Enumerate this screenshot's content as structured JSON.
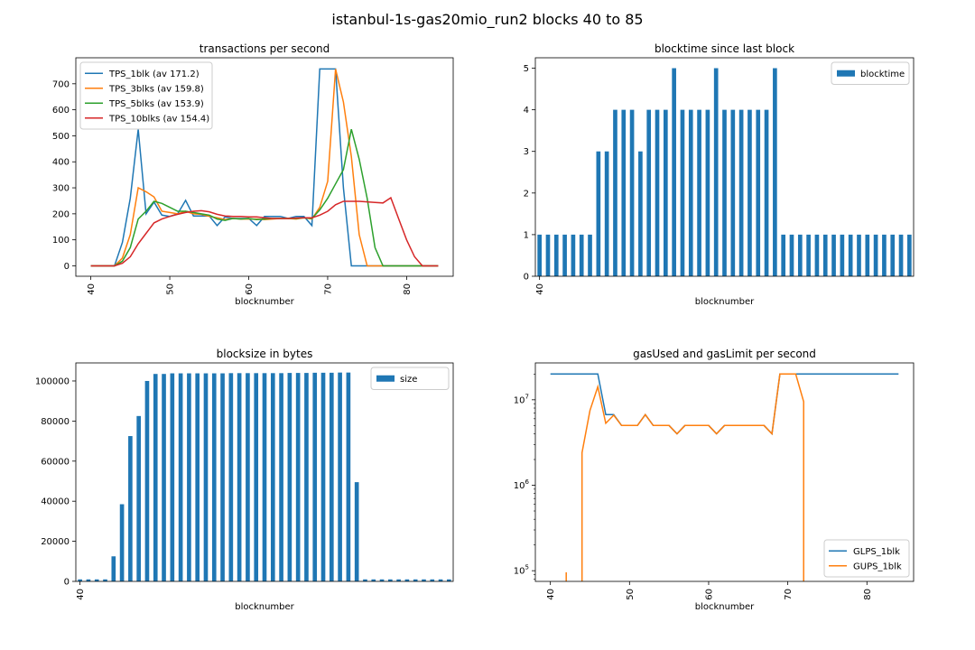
{
  "suptitle": "istanbul-1s-gas20mio_run2 blocks 40 to 85",
  "colors": {
    "blue": "#1f77b4",
    "orange": "#ff7f0e",
    "green": "#2ca02c",
    "red": "#d62728"
  },
  "chart_data": [
    {
      "type": "line",
      "title": "transactions per second",
      "xlabel": "blocknumber",
      "ylabel": "",
      "xlim": [
        38.1,
        85.9
      ],
      "ylim": [
        -40,
        800
      ],
      "xticks": [
        40,
        50,
        60,
        70,
        80
      ],
      "yticks": [
        0,
        100,
        200,
        300,
        400,
        500,
        600,
        700
      ],
      "legend": "top-left",
      "x": [
        40,
        41,
        42,
        43,
        44,
        45,
        46,
        47,
        48,
        49,
        50,
        51,
        52,
        53,
        54,
        55,
        56,
        57,
        58,
        59,
        60,
        61,
        62,
        63,
        64,
        65,
        66,
        67,
        68,
        69,
        70,
        71,
        72,
        73,
        74,
        75,
        76,
        77,
        78,
        79,
        80,
        81,
        82,
        83,
        84
      ],
      "series": [
        {
          "name": "TPS_1blk (av 171.2)",
          "color": "blue",
          "values": [
            0,
            0,
            0,
            0,
            90,
            260,
            525,
            200,
            245,
            195,
            190,
            200,
            252,
            192,
            192,
            192,
            155,
            188,
            182,
            182,
            182,
            155,
            190,
            190,
            190,
            182,
            190,
            190,
            155,
            757,
            757,
            757,
            300,
            0,
            0,
            0,
            0,
            0,
            0,
            0,
            0,
            0,
            0,
            0,
            0
          ]
        },
        {
          "name": "TPS_3blks (av 159.8)",
          "color": "orange",
          "values": [
            0,
            0,
            0,
            0,
            30,
            120,
            300,
            285,
            265,
            210,
            205,
            200,
            210,
            200,
            198,
            190,
            185,
            178,
            182,
            180,
            180,
            180,
            178,
            180,
            182,
            182,
            180,
            185,
            180,
            225,
            325,
            757,
            630,
            420,
            120,
            0,
            0,
            0,
            0,
            0,
            0,
            0,
            0,
            0,
            0
          ]
        },
        {
          "name": "TPS_5blks (av 153.9)",
          "color": "green",
          "values": [
            0,
            0,
            0,
            0,
            18,
            70,
            180,
            210,
            248,
            240,
            225,
            210,
            210,
            205,
            200,
            195,
            180,
            175,
            182,
            180,
            182,
            178,
            180,
            182,
            182,
            182,
            182,
            185,
            182,
            215,
            260,
            315,
            370,
            525,
            410,
            260,
            70,
            0,
            0,
            0,
            0,
            0,
            0,
            0,
            0
          ]
        },
        {
          "name": "TPS_10blks (av 154.4)",
          "color": "red",
          "values": [
            0,
            0,
            0,
            0,
            10,
            35,
            85,
            125,
            165,
            180,
            190,
            198,
            205,
            210,
            212,
            208,
            198,
            192,
            190,
            190,
            188,
            188,
            185,
            182,
            182,
            182,
            184,
            185,
            185,
            195,
            210,
            235,
            248,
            248,
            248,
            246,
            244,
            242,
            262,
            180,
            100,
            35,
            0,
            0,
            0
          ]
        }
      ]
    },
    {
      "type": "bar",
      "title": "blocktime since last block",
      "xlabel": "blocknumber",
      "ylabel": "",
      "ylim": [
        0,
        5.25
      ],
      "yticks": [
        0,
        1,
        2,
        3,
        4,
        5
      ],
      "xtick_labels": [
        "40"
      ],
      "legend": "top-right",
      "series": [
        {
          "name": "blocktime",
          "color": "blue",
          "values": [
            1,
            1,
            1,
            1,
            1,
            1,
            1,
            3,
            3,
            4,
            4,
            4,
            3,
            4,
            4,
            4,
            5,
            4,
            4,
            4,
            4,
            5,
            4,
            4,
            4,
            4,
            4,
            4,
            5,
            1,
            1,
            1,
            1,
            1,
            1,
            1,
            1,
            1,
            1,
            1,
            1,
            1,
            1,
            1,
            1
          ]
        }
      ]
    },
    {
      "type": "bar",
      "title": "blocksize in bytes",
      "xlabel": "blocknumber",
      "ylabel": "",
      "ylim": [
        0,
        109000
      ],
      "yticks": [
        0,
        20000,
        40000,
        60000,
        80000,
        100000
      ],
      "xtick_labels": [
        "40"
      ],
      "legend": "top-right",
      "series": [
        {
          "name": "size",
          "color": "blue",
          "values": [
            1000,
            1000,
            1000,
            1000,
            12500,
            38500,
            72500,
            82500,
            100000,
            103500,
            103500,
            103800,
            103800,
            103800,
            103800,
            103800,
            103800,
            103800,
            103900,
            103900,
            103900,
            103900,
            103900,
            103900,
            103900,
            104000,
            104000,
            104000,
            104100,
            104100,
            104100,
            104200,
            104200,
            49500,
            1000,
            1000,
            1000,
            1000,
            1000,
            1000,
            1000,
            1000,
            1000,
            1000,
            1000
          ]
        }
      ]
    },
    {
      "type": "line",
      "title": "gasUsed and gasLimit per second",
      "xlabel": "blocknumber",
      "ylabel": "",
      "yscale": "log",
      "xlim": [
        38.1,
        85.9
      ],
      "ylim": [
        75000,
        27000000
      ],
      "xticks": [
        40,
        50,
        60,
        70,
        80
      ],
      "yticks": [
        100000,
        1000000,
        10000000
      ],
      "ytick_labels": [
        [
          "10",
          "5"
        ],
        [
          "10",
          "6"
        ],
        [
          "10",
          "7"
        ]
      ],
      "legend": "bottom-right",
      "series": [
        {
          "name": "GLPS_1blk",
          "color": "blue",
          "x": [
            40,
            41,
            42,
            43,
            44,
            45,
            46,
            47,
            48,
            49,
            50,
            51,
            52,
            53,
            54,
            55,
            56,
            57,
            58,
            59,
            60,
            61,
            62,
            63,
            64,
            65,
            66,
            67,
            68,
            69,
            70,
            71,
            72,
            73,
            74,
            75,
            76,
            77,
            78,
            79,
            80,
            81,
            82,
            83,
            84
          ],
          "values": [
            20000000,
            20000000,
            20000000,
            20000000,
            20000000,
            20000000,
            20000000,
            6700000,
            6700000,
            5000000,
            5000000,
            5000000,
            6700000,
            5000000,
            5000000,
            5000000,
            4000000,
            5000000,
            5000000,
            5000000,
            5000000,
            4000000,
            5000000,
            5000000,
            5000000,
            5000000,
            5000000,
            5000000,
            4000000,
            20000000,
            20000000,
            20000000,
            20000000,
            20000000,
            20000000,
            20000000,
            20000000,
            20000000,
            20000000,
            20000000,
            20000000,
            20000000,
            20000000,
            20000000,
            20000000
          ]
        },
        {
          "name": "GUPS_1blk",
          "color": "orange",
          "x": [
            42,
            42,
            null,
            44,
            44,
            45,
            46,
            47,
            48,
            49,
            50,
            51,
            52,
            53,
            54,
            55,
            56,
            57,
            58,
            59,
            60,
            61,
            62,
            63,
            64,
            65,
            66,
            67,
            68,
            69,
            70,
            71,
            72,
            72
          ],
          "values": [
            96000,
            75000,
            null,
            75000,
            2400000,
            7500000,
            14200000,
            5300000,
            6600000,
            5000000,
            5000000,
            5000000,
            6700000,
            5000000,
            5000000,
            5000000,
            4000000,
            5000000,
            5000000,
            5000000,
            5000000,
            4000000,
            5000000,
            5000000,
            5000000,
            5000000,
            5000000,
            5000000,
            4000000,
            20000000,
            20000000,
            20000000,
            9500000,
            75000
          ]
        }
      ]
    }
  ]
}
